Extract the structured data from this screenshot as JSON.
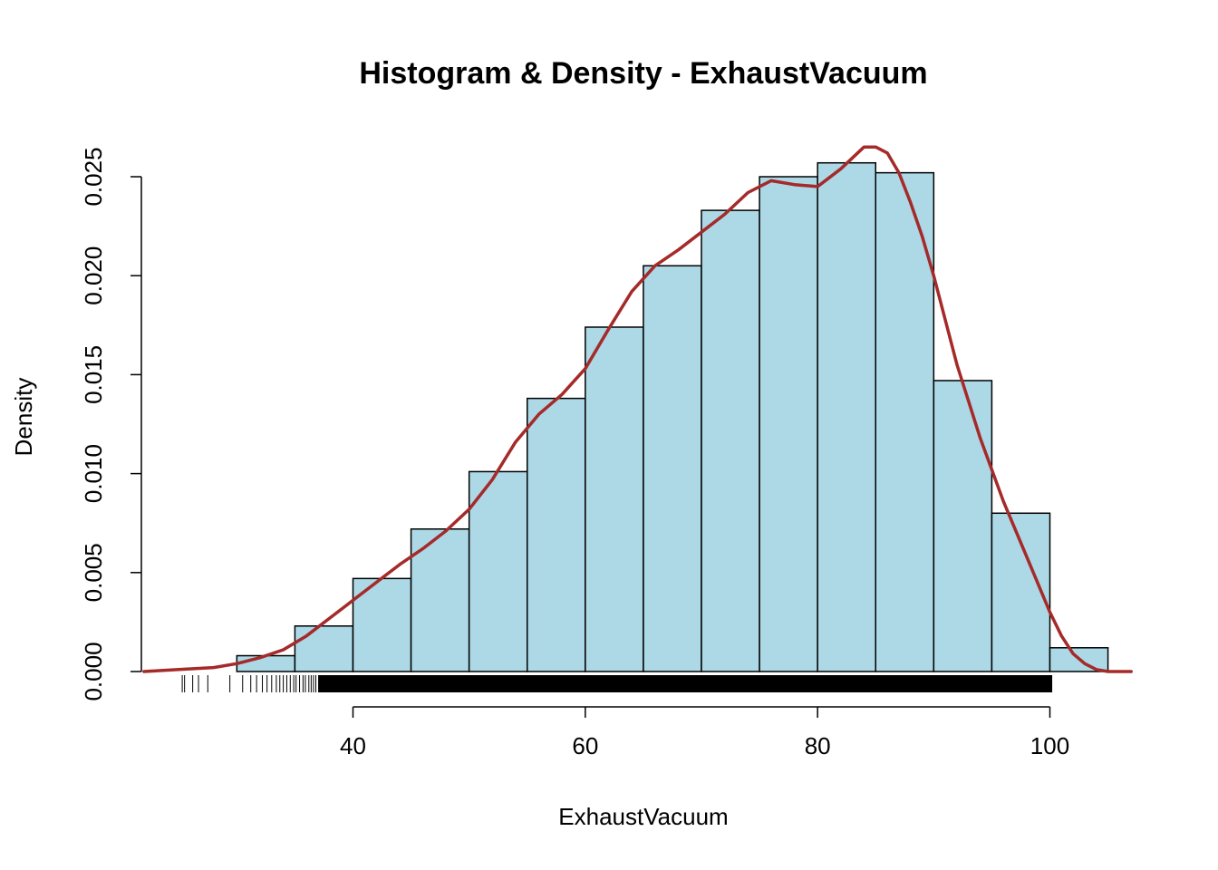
{
  "chart_data": {
    "type": "bar",
    "title": "Histogram & Density - ExhaustVacuum",
    "xlabel": "ExhaustVacuum",
    "ylabel": "Density",
    "xlim": [
      22,
      107
    ],
    "ylim": [
      0,
      0.0265
    ],
    "x_ticks": [
      {
        "value": 40,
        "label": "40"
      },
      {
        "value": 60,
        "label": "60"
      },
      {
        "value": 80,
        "label": "80"
      },
      {
        "value": 100,
        "label": "100"
      }
    ],
    "y_ticks": [
      {
        "value": 0.0,
        "label": "0.000"
      },
      {
        "value": 0.005,
        "label": "0.005"
      },
      {
        "value": 0.01,
        "label": "0.010"
      },
      {
        "value": 0.015,
        "label": "0.015"
      },
      {
        "value": 0.02,
        "label": "0.020"
      },
      {
        "value": 0.025,
        "label": "0.025"
      }
    ],
    "bins": [
      {
        "start": 25,
        "end": 30,
        "density": 0.0
      },
      {
        "start": 30,
        "end": 35,
        "density": 0.0008
      },
      {
        "start": 35,
        "end": 40,
        "density": 0.0023
      },
      {
        "start": 40,
        "end": 45,
        "density": 0.0047
      },
      {
        "start": 45,
        "end": 50,
        "density": 0.0072
      },
      {
        "start": 50,
        "end": 55,
        "density": 0.0101
      },
      {
        "start": 55,
        "end": 60,
        "density": 0.0138
      },
      {
        "start": 60,
        "end": 65,
        "density": 0.0174
      },
      {
        "start": 65,
        "end": 70,
        "density": 0.0205
      },
      {
        "start": 70,
        "end": 75,
        "density": 0.0233
      },
      {
        "start": 75,
        "end": 80,
        "density": 0.025
      },
      {
        "start": 80,
        "end": 85,
        "density": 0.0257
      },
      {
        "start": 85,
        "end": 90,
        "density": 0.0252
      },
      {
        "start": 90,
        "end": 95,
        "density": 0.0147
      },
      {
        "start": 95,
        "end": 100,
        "density": 0.008
      },
      {
        "start": 100,
        "end": 105,
        "density": 0.0012
      }
    ],
    "density_curve": {
      "x": [
        22,
        25,
        28,
        30,
        32,
        34,
        36,
        38,
        40,
        42,
        44,
        46,
        48,
        50,
        52,
        54,
        56,
        58,
        60,
        62,
        64,
        66,
        68,
        70,
        72,
        74,
        76,
        78,
        80,
        82,
        84,
        85,
        86,
        87,
        88,
        89,
        90,
        92,
        94,
        96,
        98,
        100,
        101,
        102,
        103,
        104,
        105,
        107
      ],
      "y": [
        0.0,
        0.0001,
        0.0002,
        0.0004,
        0.0007,
        0.0011,
        0.0018,
        0.0027,
        0.0036,
        0.0045,
        0.0054,
        0.0062,
        0.0071,
        0.0082,
        0.0097,
        0.0116,
        0.013,
        0.014,
        0.0153,
        0.0173,
        0.0192,
        0.0205,
        0.0213,
        0.0222,
        0.0231,
        0.0242,
        0.0248,
        0.0246,
        0.0245,
        0.0254,
        0.0265,
        0.0265,
        0.0262,
        0.0252,
        0.0237,
        0.022,
        0.02,
        0.0155,
        0.0118,
        0.0086,
        0.0058,
        0.003,
        0.0018,
        0.0009,
        0.0004,
        0.0001,
        0.0,
        0.0
      ]
    },
    "rug": {
      "sparse_x": [
        25.3,
        25.5,
        26.2,
        26.7,
        27.5,
        29.4,
        30.5,
        31.2,
        31.7,
        32.2,
        32.6,
        33.0,
        33.4,
        33.7,
        34.0,
        34.3,
        34.6,
        34.9,
        35.1,
        35.4,
        35.7,
        35.9,
        36.2,
        36.4,
        36.6,
        36.8
      ],
      "dense_range": [
        37,
        100.2
      ]
    },
    "colors": {
      "bar_fill": "#add8e6",
      "bar_stroke": "#000000",
      "density_line": "#a52a2a",
      "axis": "#000000"
    }
  }
}
